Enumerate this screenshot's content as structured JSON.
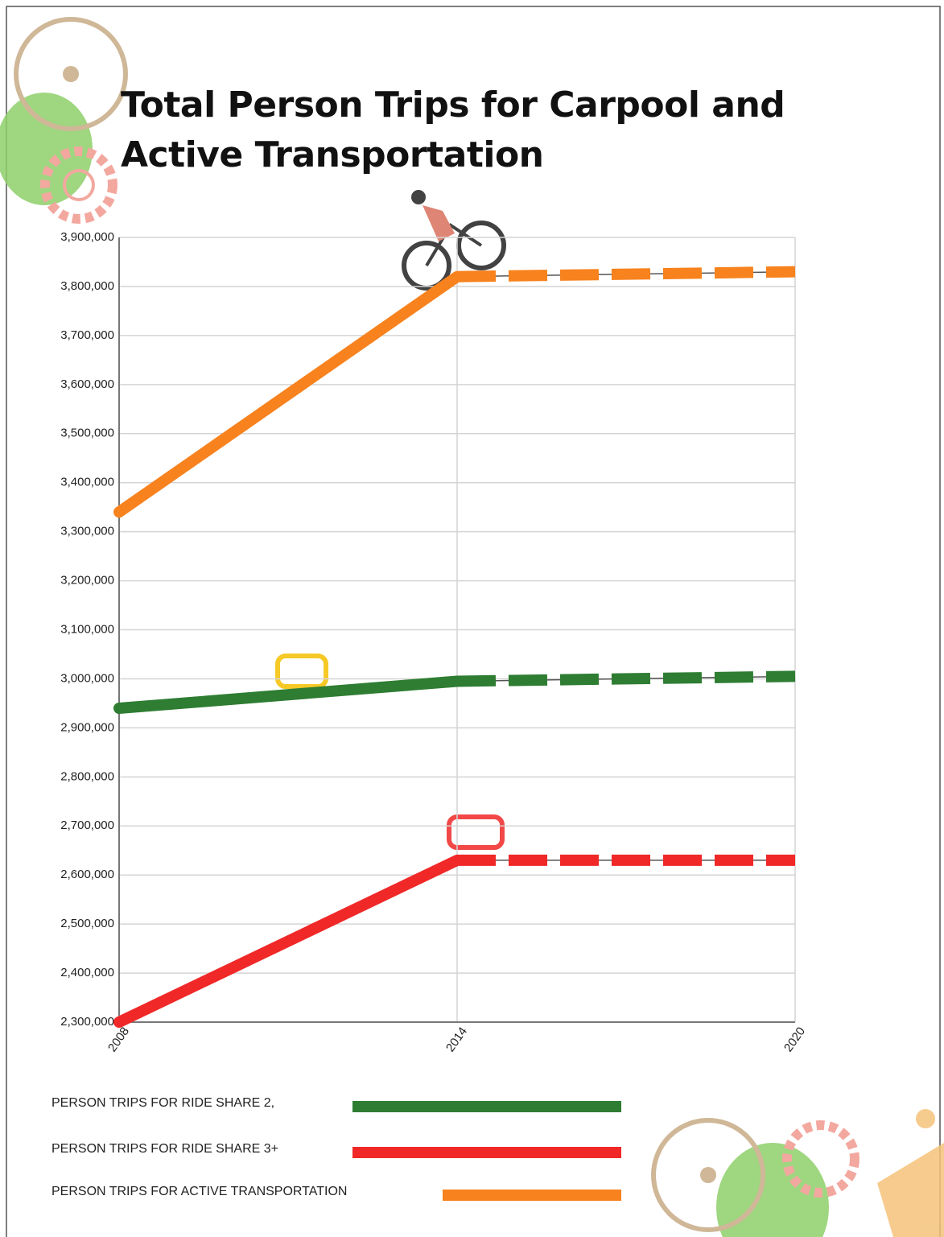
{
  "chart_data": {
    "type": "line",
    "title": "Total Person Trips for Carpool and Active Transportation",
    "x": [
      2008,
      2014,
      2020
    ],
    "xlim": [
      2008,
      2020
    ],
    "xticks": [
      2008,
      2014,
      2020
    ],
    "ylim": [
      2300000,
      3900000
    ],
    "yticks": [
      {
        "value": 2300000,
        "label": "2,300,000"
      },
      {
        "value": 2400000,
        "label": "2,400,000"
      },
      {
        "value": 2500000,
        "label": "2,500,000"
      },
      {
        "value": 2600000,
        "label": "2,600,000"
      },
      {
        "value": 2700000,
        "label": "2,700,000"
      },
      {
        "value": 2800000,
        "label": "2,800,000"
      },
      {
        "value": 2900000,
        "label": "2,900,000"
      },
      {
        "value": 3000000,
        "label": "3,000,000"
      },
      {
        "value": 3100000,
        "label": "3,100,000"
      },
      {
        "value": 3200000,
        "label": "3,200,000"
      },
      {
        "value": 3300000,
        "label": "3,300,000"
      },
      {
        "value": 3400000,
        "label": "3,400,000"
      },
      {
        "value": 3500000,
        "label": "3,500,000"
      },
      {
        "value": 3600000,
        "label": "3,600,000"
      },
      {
        "value": 3700000,
        "label": "3,700,000"
      },
      {
        "value": 3800000,
        "label": "3,800,000"
      },
      {
        "value": 3900000,
        "label": "3,900,000"
      }
    ],
    "grid": true,
    "projection_start": 1,
    "series": [
      {
        "name": "PERSON TRIPS FOR RIDE SHARE 2,",
        "color": "#2e7d32",
        "values": [
          2940000,
          2995000,
          3005000
        ]
      },
      {
        "name": "PERSON TRIPS FOR RIDE SHARE 3+",
        "color": "#f02828",
        "values": [
          2300000,
          2630000,
          2630000
        ]
      },
      {
        "name": "PERSON TRIPS FOR ACTIVE TRANSPORTATION",
        "color": "#f7821e",
        "values": [
          3340000,
          3820000,
          3830000
        ]
      }
    ]
  }
}
